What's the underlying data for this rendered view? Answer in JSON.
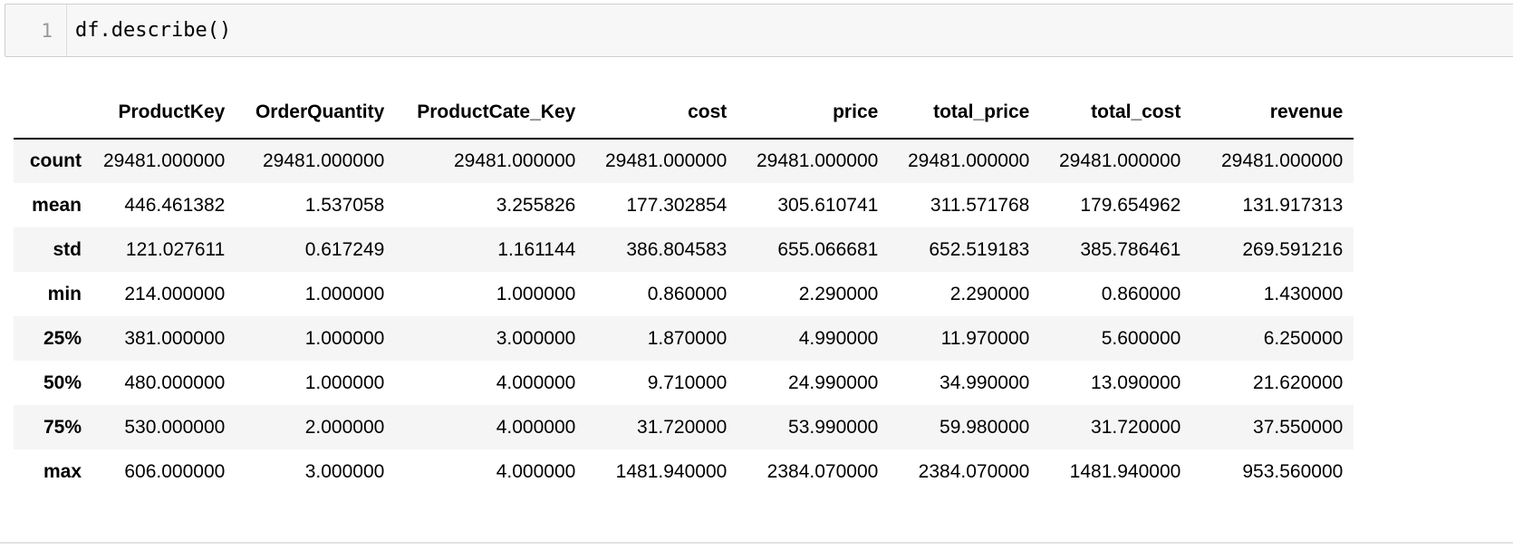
{
  "input_cell": {
    "line_number": "1",
    "code": "df.describe()"
  },
  "table": {
    "index_header": "",
    "columns": [
      "ProductKey",
      "OrderQuantity",
      "ProductCate_Key",
      "cost",
      "price",
      "total_price",
      "total_cost",
      "revenue"
    ],
    "rows": [
      {
        "label": "count",
        "values": [
          "29481.000000",
          "29481.000000",
          "29481.000000",
          "29481.000000",
          "29481.000000",
          "29481.000000",
          "29481.000000",
          "29481.000000"
        ]
      },
      {
        "label": "mean",
        "values": [
          "446.461382",
          "1.537058",
          "3.255826",
          "177.302854",
          "305.610741",
          "311.571768",
          "179.654962",
          "131.917313"
        ]
      },
      {
        "label": "std",
        "values": [
          "121.027611",
          "0.617249",
          "1.161144",
          "386.804583",
          "655.066681",
          "652.519183",
          "385.786461",
          "269.591216"
        ]
      },
      {
        "label": "min",
        "values": [
          "214.000000",
          "1.000000",
          "1.000000",
          "0.860000",
          "2.290000",
          "2.290000",
          "0.860000",
          "1.430000"
        ]
      },
      {
        "label": "25%",
        "values": [
          "381.000000",
          "1.000000",
          "3.000000",
          "1.870000",
          "4.990000",
          "11.970000",
          "5.600000",
          "6.250000"
        ]
      },
      {
        "label": "50%",
        "values": [
          "480.000000",
          "1.000000",
          "4.000000",
          "9.710000",
          "24.990000",
          "34.990000",
          "13.090000",
          "21.620000"
        ]
      },
      {
        "label": "75%",
        "values": [
          "530.000000",
          "2.000000",
          "4.000000",
          "31.720000",
          "53.990000",
          "59.980000",
          "31.720000",
          "37.550000"
        ]
      },
      {
        "label": "max",
        "values": [
          "606.000000",
          "3.000000",
          "4.000000",
          "1481.940000",
          "2384.070000",
          "2384.070000",
          "1481.940000",
          "953.560000"
        ]
      }
    ]
  }
}
